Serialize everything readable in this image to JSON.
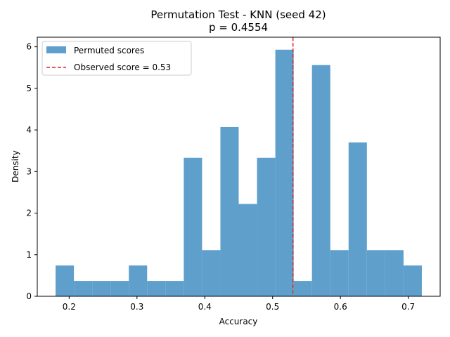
{
  "chart_data": {
    "type": "bar",
    "title": "Permutation Test - KNN (seed 42)",
    "subtitle": "p = 0.4554",
    "xlabel": "Accuracy",
    "ylabel": "Density",
    "xlim": [
      0.153,
      0.747
    ],
    "ylim": [
      0,
      6.23
    ],
    "xticks": [
      "0.2",
      "0.3",
      "0.4",
      "0.5",
      "0.6",
      "0.7"
    ],
    "yticks": [
      "0",
      "1",
      "2",
      "3",
      "4",
      "5",
      "6"
    ],
    "bin_edges": [
      0.18,
      0.207,
      0.234,
      0.261,
      0.288,
      0.315,
      0.342,
      0.369,
      0.396,
      0.423,
      0.45,
      0.477,
      0.504,
      0.531,
      0.558,
      0.585,
      0.612,
      0.639,
      0.666,
      0.693,
      0.72
    ],
    "series": [
      {
        "name": "Permuted scores",
        "values": [
          0.74,
          0.37,
          0.37,
          0.37,
          0.74,
          0.37,
          0.37,
          3.33,
          1.11,
          4.07,
          2.22,
          3.33,
          5.93,
          0.37,
          5.56,
          1.11,
          3.7,
          1.11,
          1.11,
          0.74
        ],
        "color": "#5f9fcc"
      }
    ],
    "observed": {
      "name": "Observed score = 0.53",
      "value": 0.53,
      "color": "#d62728"
    },
    "legend_position": "top-left",
    "grid": false
  }
}
